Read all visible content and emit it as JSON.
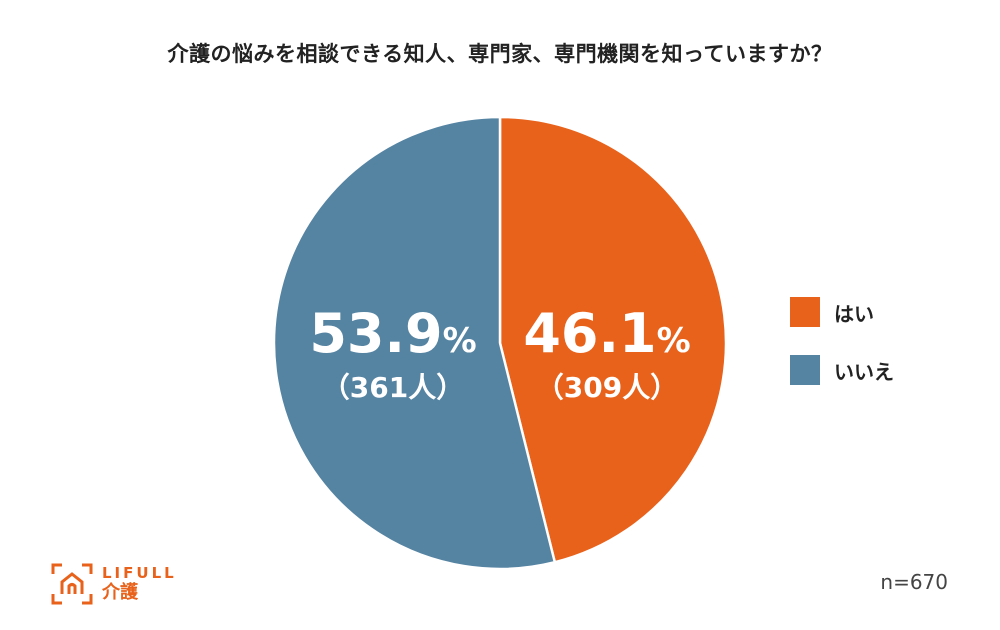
{
  "title": "介護の悩みを相談できる知人、専門家、専門機関を知っていますか？",
  "chart_data": {
    "type": "pie",
    "slices": [
      {
        "label": "はい",
        "percent": 46.1,
        "percent_text": "46.1",
        "count_text": "（309人）",
        "color": "#E8621B"
      },
      {
        "label": "いいえ",
        "percent": 53.9,
        "percent_text": "53.9",
        "count_text": "（361人）",
        "color": "#5583A2"
      }
    ],
    "start": "top",
    "direction": "clockwise",
    "legend_position": "right"
  },
  "percent_sign": "%",
  "sample_size": "n=670",
  "logo": {
    "top_text": "LIFULL",
    "bottom_text": "介護",
    "color": "#E8621B"
  }
}
